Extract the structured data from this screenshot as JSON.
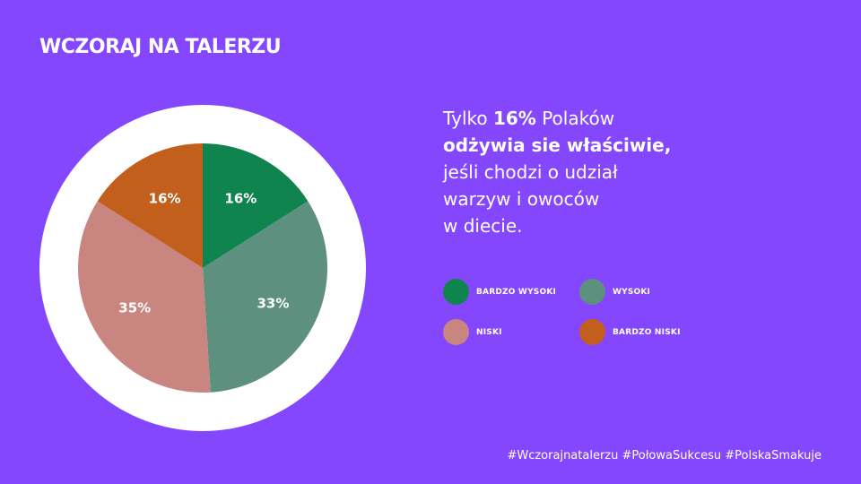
{
  "title": "WCZORAJ NA TALERZU",
  "headline": {
    "line1_pre": "Tylko ",
    "line1_bold": "16%",
    "line1_post": " Polaków",
    "line2_bold": "odżywia sie właściwie,",
    "line3": "jeśli chodzi o udział",
    "line4": "warzyw i owoców",
    "line5": "w diecie."
  },
  "legend": [
    {
      "label": "BARDZO WYSOKI",
      "color": "#10844f"
    },
    {
      "label": "WYSOKI",
      "color": "#5e9080"
    },
    {
      "label": "NISKI",
      "color": "#c98580"
    },
    {
      "label": "BARDZO NISKI",
      "color": "#c25f1c"
    }
  ],
  "chart_data": {
    "type": "pie",
    "labels": [
      "BARDZO WYSOKI",
      "WYSOKI",
      "NISKI",
      "BARDZO NISKI"
    ],
    "values": [
      16,
      33,
      35,
      16
    ],
    "value_labels": [
      "16%",
      "33%",
      "35%",
      "16%"
    ],
    "colors": [
      "#10844f",
      "#5e9080",
      "#c98580",
      "#c25f1c"
    ],
    "start": "12 o'clock",
    "direction": "clockwise",
    "ring_color": "#ffffff"
  },
  "hashtags": "#Wczorajnatalerzu #PołowaSukcesu  #PolskaSmakuje"
}
